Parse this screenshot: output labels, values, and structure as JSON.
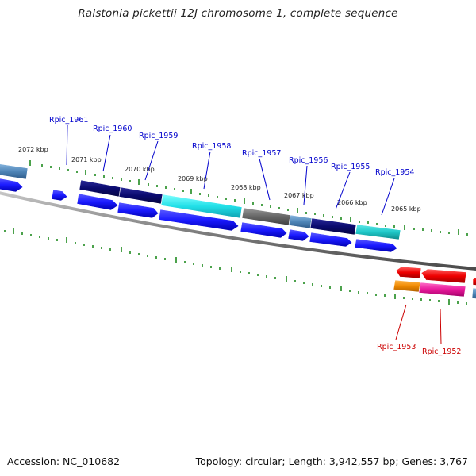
{
  "title": "Ralstonia pickettii 12J chromosome 1, complete sequence",
  "accession_text": "Accession: NC_010682",
  "topology_text": "Topology: circular; Length: 3,942,557 bp; Genes: 3,767",
  "kbp_labels": [
    "2072 kbp",
    "2071 kbp",
    "2070 kbp",
    "2069 kbp",
    "2068 kbp",
    "2067 kbp",
    "2066 kbp",
    "2065 kbp"
  ],
  "gene_labels_top": [
    "Rpic_1961",
    "Rpic_1960",
    "Rpic_1959",
    "Rpic_1958",
    "Rpic_1957",
    "Rpic_1956",
    "Rpic_1955",
    "Rpic_1954"
  ],
  "gene_labels_bottom": [
    "Rpic_1953",
    "Rpic_1952"
  ],
  "colors": {
    "plus_strand_gene": "#1a1aff",
    "dark_navy": "#0a0a6e",
    "cyan": "#22e0e8",
    "teal": "#1fc8c8",
    "gray": "#666666",
    "steel_blue": "#4f86b8",
    "red": "#ee0000",
    "orange": "#f08a00",
    "magenta": "#e8189a",
    "tick_green": "#1f8a1f",
    "backbone": "#808080"
  }
}
